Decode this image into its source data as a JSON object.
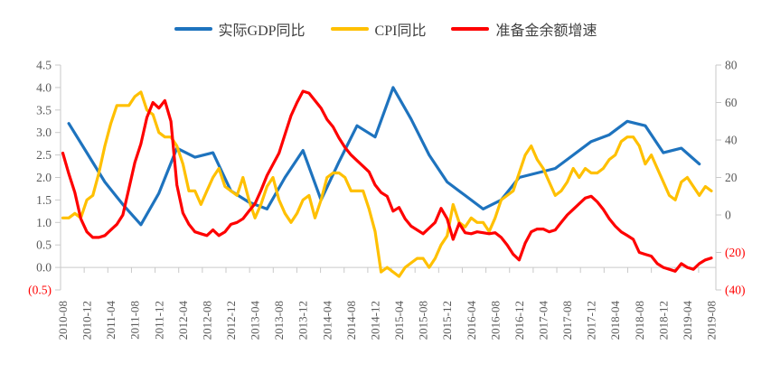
{
  "legend": {
    "items": [
      {
        "label": "实际GDP同比",
        "color": "#1e73be"
      },
      {
        "label": "CPI同比",
        "color": "#ffc000"
      },
      {
        "label": "准备金余额增速",
        "color": "#fe0000"
      }
    ]
  },
  "chart_data": {
    "type": "line",
    "title": "",
    "x_axis": {
      "start": "2010-08",
      "end": "2019-08",
      "unit": "month",
      "label_every_n_months": 4,
      "labels": [
        "2010-08",
        "2010-12",
        "2011-04",
        "2011-08",
        "2011-12",
        "2012-04",
        "2012-08",
        "2012-12",
        "2013-04",
        "2013-08",
        "2013-12",
        "2014-04",
        "2014-08",
        "2014-12",
        "2015-04",
        "2015-08",
        "2015-12",
        "2016-04",
        "2016-08",
        "2016-12",
        "2017-04",
        "2017-08",
        "2017-12",
        "2018-04",
        "2018-08",
        "2018-12",
        "2019-04",
        "2019-08"
      ]
    },
    "y_left": {
      "min": -0.5,
      "max": 4.5,
      "ticks": [
        {
          "value": 4.5,
          "label": "4.5",
          "negative": false
        },
        {
          "value": 4.0,
          "label": "4.0",
          "negative": false
        },
        {
          "value": 3.5,
          "label": "3.5",
          "negative": false
        },
        {
          "value": 3.0,
          "label": "3.0",
          "negative": false
        },
        {
          "value": 2.5,
          "label": "2.5",
          "negative": false
        },
        {
          "value": 2.0,
          "label": "2.0",
          "negative": false
        },
        {
          "value": 1.5,
          "label": "1.5",
          "negative": false
        },
        {
          "value": 1.0,
          "label": "1.0",
          "negative": false
        },
        {
          "value": 0.5,
          "label": "0.5",
          "negative": false
        },
        {
          "value": 0.0,
          "label": "0.0",
          "negative": false
        },
        {
          "value": -0.5,
          "label": "(0.5)",
          "negative": true
        }
      ]
    },
    "y_right": {
      "min": -40,
      "max": 80,
      "ticks": [
        {
          "value": 80,
          "label": "80",
          "negative": false
        },
        {
          "value": 60,
          "label": "60",
          "negative": false
        },
        {
          "value": 40,
          "label": "40",
          "negative": false
        },
        {
          "value": 20,
          "label": "20",
          "negative": false
        },
        {
          "value": 0,
          "label": "0",
          "negative": false
        },
        {
          "value": -20,
          "label": "(20)",
          "negative": true
        },
        {
          "value": -40,
          "label": "(40)",
          "negative": true
        }
      ]
    },
    "series": [
      {
        "name": "实际GDP同比",
        "color": "#1e73be",
        "axis": "left",
        "start_month_index": 1,
        "month_step": 3,
        "values": [
          3.2,
          2.55,
          1.9,
          1.4,
          0.95,
          1.65,
          2.65,
          2.45,
          2.55,
          1.7,
          1.45,
          1.3,
          2.0,
          2.6,
          1.5,
          2.35,
          3.15,
          2.9,
          4.0,
          3.3,
          2.5,
          1.9,
          1.6,
          1.3,
          1.5,
          2.0,
          2.1,
          2.2,
          2.5,
          2.8,
          2.95,
          3.25,
          3.15,
          2.55,
          2.65,
          2.3
        ]
      },
      {
        "name": "CPI同比",
        "color": "#ffc000",
        "axis": "left",
        "start_month_index": 0,
        "month_step": 1,
        "values": [
          1.1,
          1.1,
          1.2,
          1.1,
          1.5,
          1.6,
          2.1,
          2.7,
          3.2,
          3.6,
          3.6,
          3.6,
          3.8,
          3.9,
          3.5,
          3.4,
          3.0,
          2.9,
          2.9,
          2.7,
          2.3,
          1.7,
          1.7,
          1.4,
          1.7,
          2.0,
          2.2,
          1.8,
          1.7,
          1.6,
          2.0,
          1.5,
          1.1,
          1.4,
          1.8,
          2.0,
          1.5,
          1.2,
          1.0,
          1.2,
          1.5,
          1.6,
          1.1,
          1.5,
          2.0,
          2.1,
          2.1,
          2.0,
          1.7,
          1.7,
          1.7,
          1.3,
          0.8,
          -0.1,
          0.0,
          -0.1,
          -0.2,
          0.0,
          0.1,
          0.2,
          0.2,
          0.0,
          0.2,
          0.5,
          0.7,
          1.4,
          1.0,
          0.9,
          1.1,
          1.0,
          1.0,
          0.8,
          1.1,
          1.5,
          1.6,
          1.7,
          2.1,
          2.5,
          2.7,
          2.4,
          2.2,
          1.9,
          1.6,
          1.7,
          1.9,
          2.2,
          2.0,
          2.2,
          2.1,
          2.1,
          2.2,
          2.4,
          2.5,
          2.8,
          2.9,
          2.9,
          2.7,
          2.3,
          2.5,
          2.2,
          1.9,
          1.6,
          1.5,
          1.9,
          2.0,
          1.8,
          1.6,
          1.8,
          1.7
        ]
      },
      {
        "name": "准备金余额增速",
        "color": "#fe0000",
        "axis": "right",
        "start_month_index": 0,
        "month_step": 1,
        "values": [
          33,
          22,
          12,
          -2,
          -9,
          -12,
          -12,
          -11,
          -8,
          -5,
          0,
          14,
          28,
          38,
          52,
          60,
          57,
          61,
          50,
          16,
          1,
          -5,
          -9,
          -10,
          -11,
          -8,
          -11,
          -9,
          -5,
          -4,
          -2,
          2,
          6,
          13,
          21,
          27,
          33,
          43,
          53,
          60,
          66,
          65,
          61,
          57,
          51,
          47,
          41,
          36,
          32,
          29,
          26,
          23,
          16,
          12,
          10,
          2,
          4,
          -2,
          -6,
          -8,
          -10,
          -7,
          -4,
          3.5,
          -2,
          -13,
          -4.5,
          -9.5,
          -10,
          -9,
          -9.5,
          -10,
          -9.5,
          -12,
          -16,
          -21,
          -24,
          -15,
          -9,
          -7.5,
          -7.5,
          -9,
          -8,
          -4,
          0,
          3,
          6,
          9,
          10,
          7,
          3,
          -2,
          -6,
          -9,
          -11,
          -13,
          -20,
          -21,
          -22,
          -26,
          -28,
          -29,
          -30,
          -26,
          -28,
          -29,
          -26,
          -24,
          -23
        ]
      }
    ],
    "grid": false,
    "legend_position": "top-center"
  }
}
